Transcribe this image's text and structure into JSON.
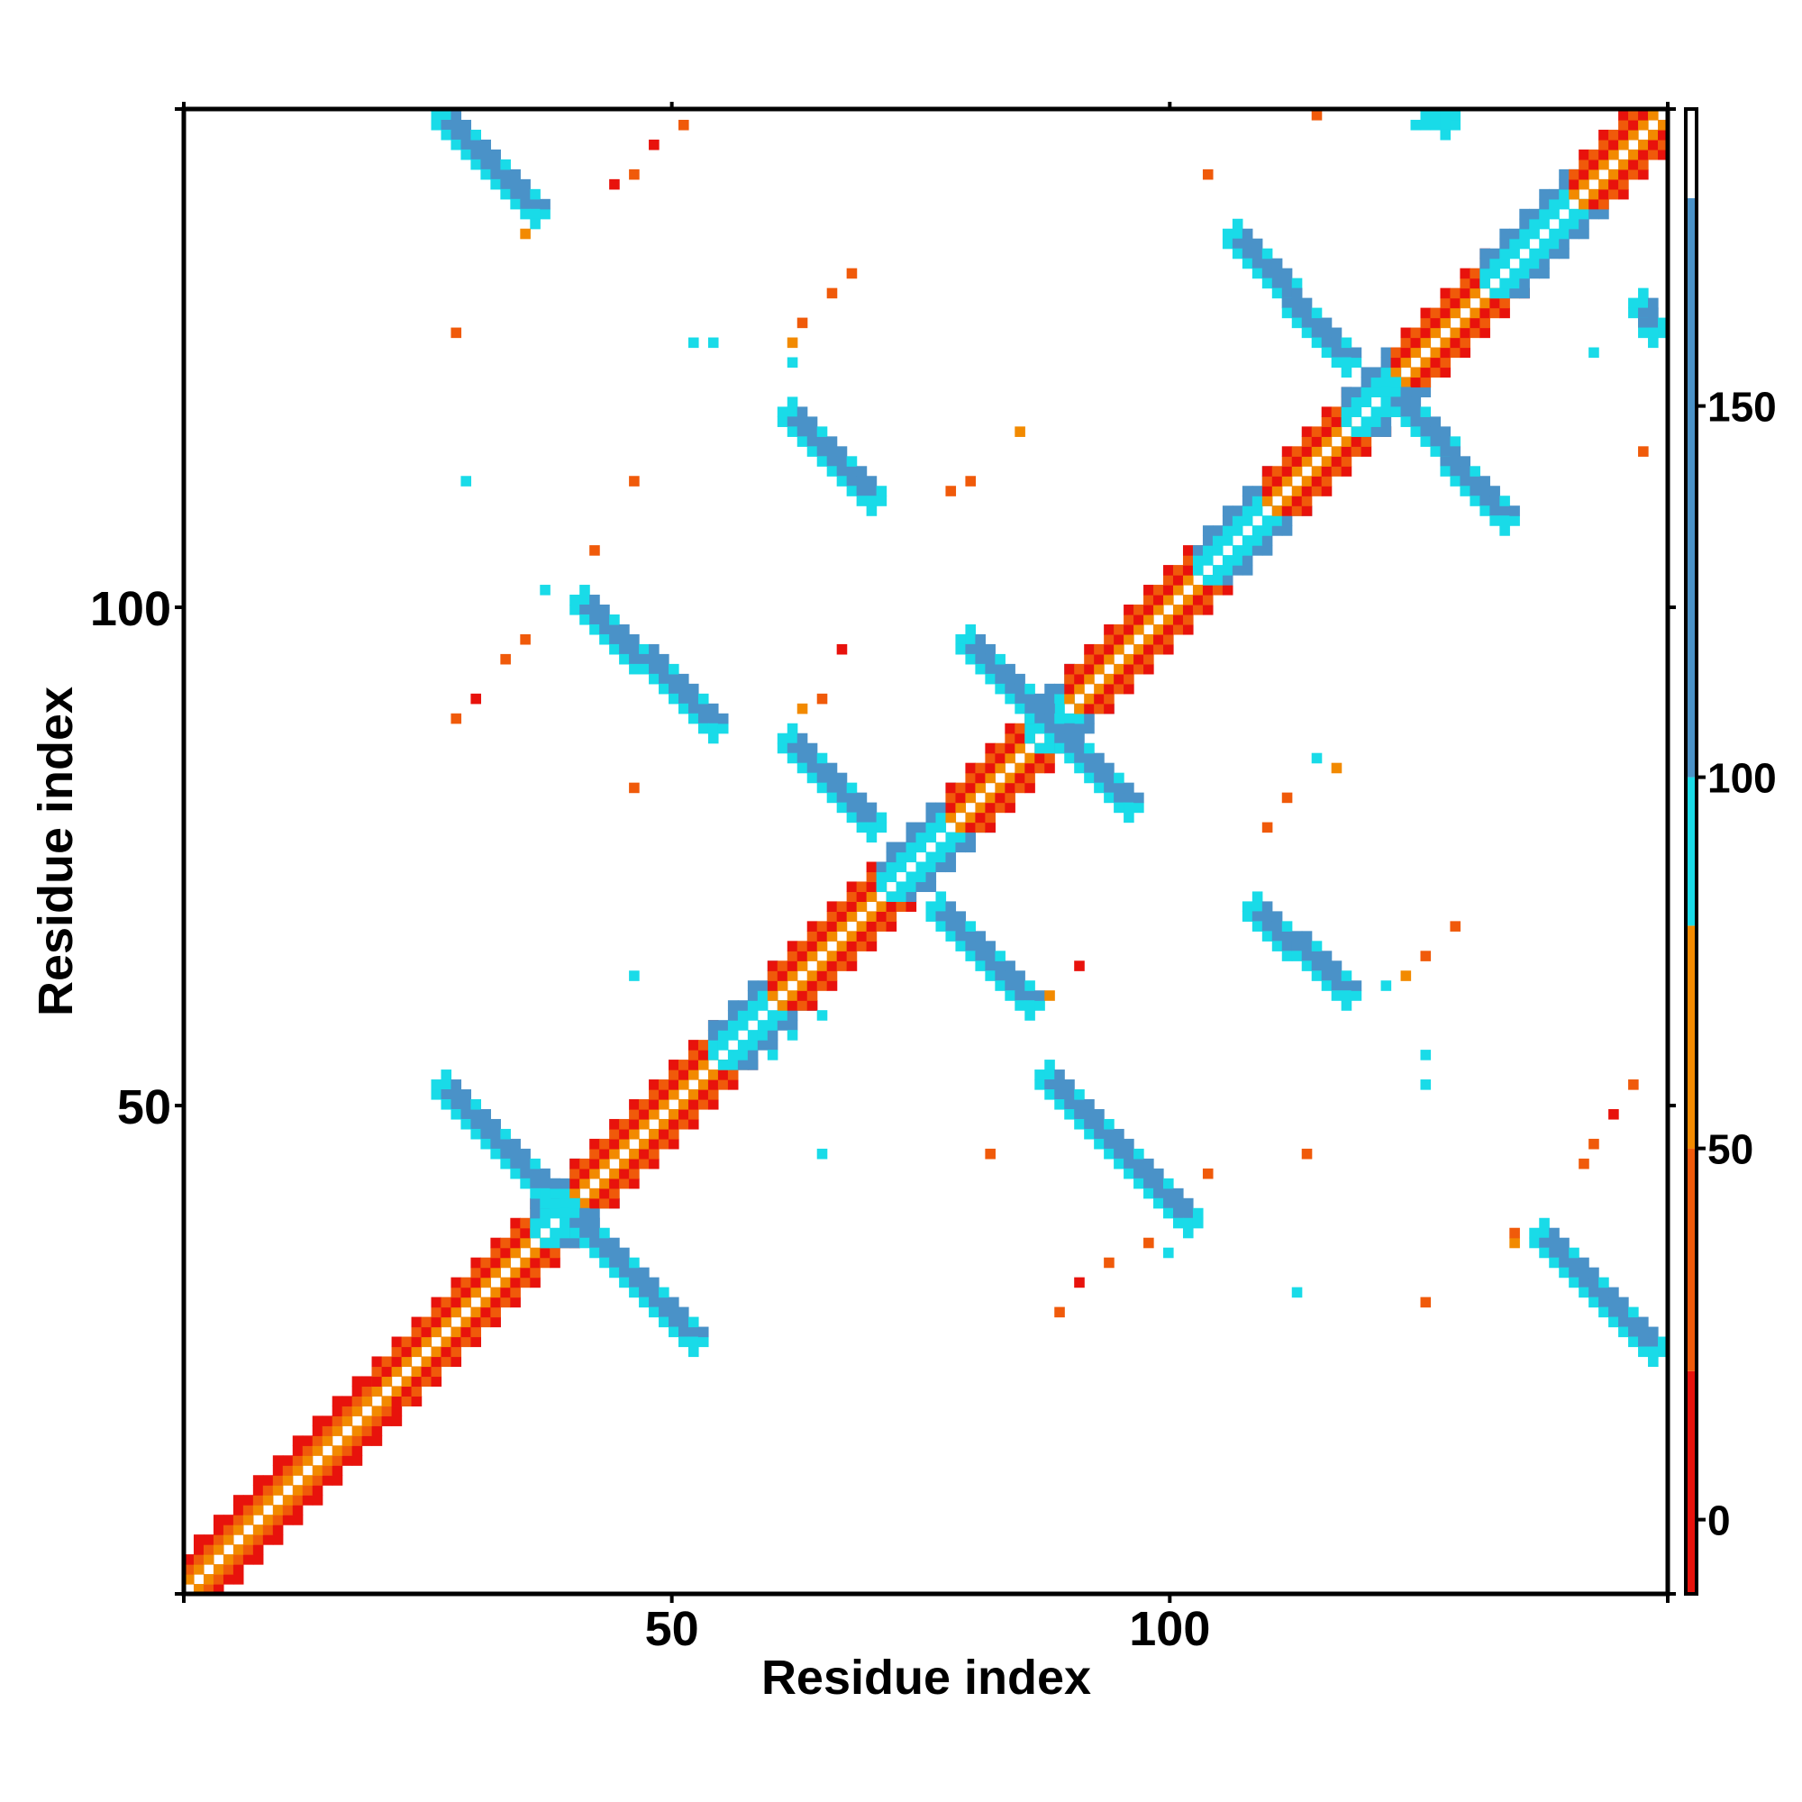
{
  "chart_data": {
    "type": "heatmap",
    "title": "",
    "xlabel": "Residue index",
    "ylabel": "Residue index",
    "xlim": [
      1,
      150
    ],
    "ylim": [
      1,
      150
    ],
    "x_ticks": [
      {
        "value": 50,
        "label": "50"
      },
      {
        "value": 100,
        "label": "100"
      }
    ],
    "y_ticks": [
      {
        "value": 50,
        "label": "50"
      },
      {
        "value": 100,
        "label": "100"
      }
    ],
    "grid": false,
    "colorbar": {
      "position": "right",
      "range": [
        -10,
        190
      ],
      "ticks": [
        {
          "value": 0,
          "label": "0"
        },
        {
          "value": 50,
          "label": "50"
        },
        {
          "value": 100,
          "label": "100"
        },
        {
          "value": 150,
          "label": "150"
        }
      ],
      "bands": [
        {
          "from": -10,
          "to": 20,
          "color": "#e8120c"
        },
        {
          "from": 20,
          "to": 50,
          "color": "#f05a0a"
        },
        {
          "from": 50,
          "to": 80,
          "color": "#f28a00"
        },
        {
          "from": 80,
          "to": 100,
          "color": "#19dbe8"
        },
        {
          "from": 100,
          "to": 178,
          "color": "#4a92c8"
        },
        {
          "from": 178,
          "to": 190,
          "color": "#ffffff"
        }
      ]
    },
    "colors": {
      "red": "#e8120c",
      "redorange": "#f05a0a",
      "orange": "#f28a00",
      "cyan": "#19dbe8",
      "steel": "#4a92c8"
    },
    "diagonal_band_segments": [
      {
        "from": 1,
        "to": 20,
        "class": "orange"
      },
      {
        "from": 20,
        "to": 36,
        "class": "red"
      },
      {
        "from": 36,
        "to": 40,
        "class": "cyan"
      },
      {
        "from": 40,
        "to": 54,
        "class": "red"
      },
      {
        "from": 54,
        "to": 60,
        "class": "cyan"
      },
      {
        "from": 60,
        "to": 71,
        "class": "red"
      },
      {
        "from": 71,
        "to": 78,
        "class": "cyan"
      },
      {
        "from": 78,
        "to": 86,
        "class": "red"
      },
      {
        "from": 86,
        "to": 90,
        "class": "cyan"
      },
      {
        "from": 90,
        "to": 103,
        "class": "red"
      },
      {
        "from": 103,
        "to": 110,
        "class": "cyan"
      },
      {
        "from": 110,
        "to": 118,
        "class": "red"
      },
      {
        "from": 118,
        "to": 123,
        "class": "cyan"
      },
      {
        "from": 123,
        "to": 132,
        "class": "red"
      },
      {
        "from": 132,
        "to": 141,
        "class": "cyan"
      },
      {
        "from": 141,
        "to": 150,
        "class": "red"
      }
    ],
    "strands": [
      {
        "x": [
          26,
          36
        ],
        "y": [
          150,
          140
        ],
        "class": "steel"
      },
      {
        "x": [
          26,
          37
        ],
        "y": [
          52,
          41
        ],
        "class": "steel"
      },
      {
        "x": [
          39,
          52
        ],
        "y": [
          39,
          26
        ],
        "class": "steel"
      },
      {
        "x": [
          40,
          54
        ],
        "y": [
          101,
          88
        ],
        "class": "steel"
      },
      {
        "x": [
          61,
          70
        ],
        "y": [
          87,
          78
        ],
        "class": "steel"
      },
      {
        "x": [
          61,
          70
        ],
        "y": [
          120,
          111
        ],
        "class": "steel"
      },
      {
        "x": [
          76,
          86
        ],
        "y": [
          70,
          60
        ],
        "class": "steel"
      },
      {
        "x": [
          87,
          102
        ],
        "y": [
          53,
          38
        ],
        "class": "steel"
      },
      {
        "x": [
          108,
          118
        ],
        "y": [
          70,
          61
        ],
        "class": "steel"
      },
      {
        "x": [
          106,
          118
        ],
        "y": [
          138,
          125
        ],
        "class": "steel"
      },
      {
        "x": [
          122,
          134
        ],
        "y": [
          122,
          109
        ],
        "class": "steel"
      },
      {
        "x": [
          137,
          149
        ],
        "y": [
          37,
          25
        ],
        "class": "steel"
      },
      {
        "x": [
          79,
          96
        ],
        "y": [
          97,
          80
        ],
        "class": "steel"
      },
      {
        "x": [
          147,
          149
        ],
        "y": [
          131,
          128
        ],
        "class": "steel"
      },
      {
        "x": [
          126,
          128
        ],
        "y": [
          150,
          149
        ],
        "class": "cyan"
      }
    ],
    "contacts": [
      {
        "x": 51,
        "y": 149,
        "class": "redorange"
      },
      {
        "x": 48,
        "y": 147,
        "class": "red"
      },
      {
        "x": 46,
        "y": 144,
        "class": "redorange"
      },
      {
        "x": 44,
        "y": 143,
        "class": "red"
      },
      {
        "x": 35,
        "y": 138,
        "class": "orange"
      },
      {
        "x": 28,
        "y": 128,
        "class": "redorange"
      },
      {
        "x": 52,
        "y": 127,
        "class": "cyan"
      },
      {
        "x": 54,
        "y": 127,
        "class": "cyan"
      },
      {
        "x": 62,
        "y": 127,
        "class": "orange"
      },
      {
        "x": 63,
        "y": 129,
        "class": "redorange"
      },
      {
        "x": 66,
        "y": 132,
        "class": "redorange"
      },
      {
        "x": 68,
        "y": 134,
        "class": "redorange"
      },
      {
        "x": 62,
        "y": 125,
        "class": "cyan"
      },
      {
        "x": 29,
        "y": 113,
        "class": "cyan"
      },
      {
        "x": 46,
        "y": 113,
        "class": "redorange"
      },
      {
        "x": 42,
        "y": 106,
        "class": "redorange"
      },
      {
        "x": 37,
        "y": 102,
        "class": "cyan"
      },
      {
        "x": 35,
        "y": 97,
        "class": "redorange"
      },
      {
        "x": 33,
        "y": 95,
        "class": "redorange"
      },
      {
        "x": 30,
        "y": 91,
        "class": "red"
      },
      {
        "x": 28,
        "y": 89,
        "class": "redorange"
      },
      {
        "x": 46,
        "y": 82,
        "class": "redorange"
      },
      {
        "x": 63,
        "y": 90,
        "class": "orange"
      },
      {
        "x": 65,
        "y": 91,
        "class": "redorange"
      },
      {
        "x": 67,
        "y": 96,
        "class": "red"
      },
      {
        "x": 85,
        "y": 118,
        "class": "orange"
      },
      {
        "x": 80,
        "y": 113,
        "class": "redorange"
      },
      {
        "x": 78,
        "y": 112,
        "class": "redorange"
      },
      {
        "x": 46,
        "y": 63,
        "class": "cyan"
      },
      {
        "x": 91,
        "y": 64,
        "class": "red"
      },
      {
        "x": 88,
        "y": 61,
        "class": "orange"
      },
      {
        "x": 65,
        "y": 45,
        "class": "cyan"
      },
      {
        "x": 82,
        "y": 45,
        "class": "redorange"
      },
      {
        "x": 104,
        "y": 43,
        "class": "redorange"
      },
      {
        "x": 98,
        "y": 36,
        "class": "redorange"
      },
      {
        "x": 94,
        "y": 34,
        "class": "redorange"
      },
      {
        "x": 91,
        "y": 32,
        "class": "red"
      },
      {
        "x": 89,
        "y": 29,
        "class": "redorange"
      },
      {
        "x": 100,
        "y": 35,
        "class": "cyan"
      },
      {
        "x": 114,
        "y": 45,
        "class": "redorange"
      },
      {
        "x": 126,
        "y": 30,
        "class": "redorange"
      },
      {
        "x": 113,
        "y": 31,
        "class": "cyan"
      },
      {
        "x": 117,
        "y": 84,
        "class": "orange"
      },
      {
        "x": 115,
        "y": 85,
        "class": "cyan"
      },
      {
        "x": 112,
        "y": 81,
        "class": "redorange"
      },
      {
        "x": 110,
        "y": 78,
        "class": "redorange"
      },
      {
        "x": 129,
        "y": 68,
        "class": "redorange"
      },
      {
        "x": 126,
        "y": 65,
        "class": "redorange"
      },
      {
        "x": 124,
        "y": 63,
        "class": "orange"
      },
      {
        "x": 122,
        "y": 62,
        "class": "cyan"
      },
      {
        "x": 126,
        "y": 55,
        "class": "cyan"
      },
      {
        "x": 126,
        "y": 52,
        "class": "cyan"
      },
      {
        "x": 147,
        "y": 52,
        "class": "redorange"
      },
      {
        "x": 145,
        "y": 49,
        "class": "red"
      },
      {
        "x": 143,
        "y": 46,
        "class": "redorange"
      },
      {
        "x": 142,
        "y": 44,
        "class": "redorange"
      },
      {
        "x": 135,
        "y": 36,
        "class": "orange"
      },
      {
        "x": 135,
        "y": 37,
        "class": "redorange"
      },
      {
        "x": 115,
        "y": 150,
        "class": "redorange"
      },
      {
        "x": 148,
        "y": 116,
        "class": "redorange"
      },
      {
        "x": 125,
        "y": 149,
        "class": "cyan"
      },
      {
        "x": 65,
        "y": 59,
        "class": "cyan"
      },
      {
        "x": 62,
        "y": 57,
        "class": "cyan"
      },
      {
        "x": 60,
        "y": 55,
        "class": "cyan"
      },
      {
        "x": 104,
        "y": 144,
        "class": "redorange"
      },
      {
        "x": 143,
        "y": 126,
        "class": "cyan"
      }
    ]
  }
}
